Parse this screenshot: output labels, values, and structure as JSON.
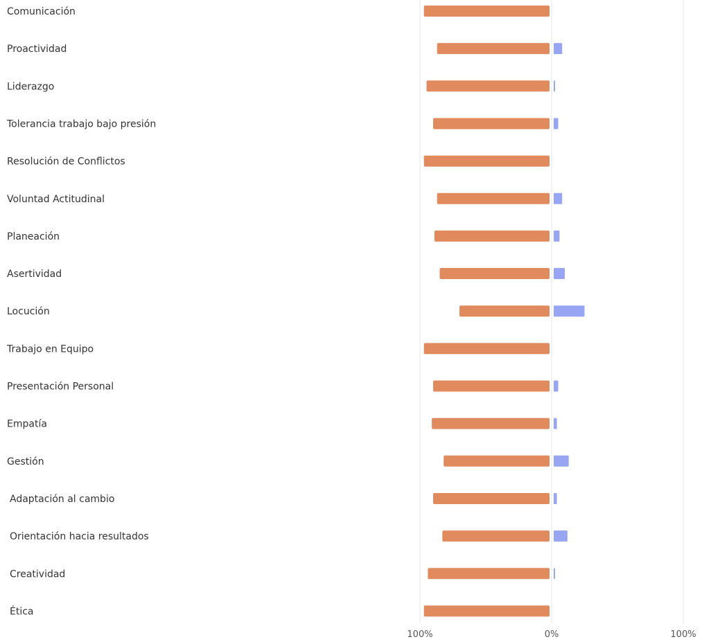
{
  "chart_data": {
    "type": "bar",
    "orientation": "horizontal",
    "diverging": true,
    "categories": [
      "Comunicación",
      "Proactividad",
      "Liderazgo",
      "Tolerancia trabajo bajo presión",
      "Resolución de Conflictos",
      "Voluntad Actitudinal",
      "Planeación",
      "Asertividad",
      "Locución",
      "Trabajo en Equipo",
      "Presentación Personal",
      "Empatía",
      "Gestión",
      "Adaptación al cambio",
      "Orientación hacia resultados",
      "Creatividad",
      "Ética"
    ],
    "series": [
      {
        "color": "#E08A5E",
        "side": "left",
        "values": [
          97,
          87,
          95,
          90,
          97,
          87,
          89,
          85,
          70,
          97,
          90,
          91,
          82,
          90,
          83,
          94,
          97
        ]
      },
      {
        "color": "#97A5F2",
        "side": "right",
        "values": [
          0,
          8,
          1,
          5,
          0,
          8,
          6,
          10,
          25,
          0,
          5,
          4,
          13,
          4,
          12,
          1,
          0
        ]
      }
    ],
    "xlim": [
      -100,
      100
    ],
    "tick_values": [
      -100,
      0,
      100
    ],
    "tick_labels": [
      "100%",
      "0%",
      "100%"
    ],
    "grid": true
  }
}
